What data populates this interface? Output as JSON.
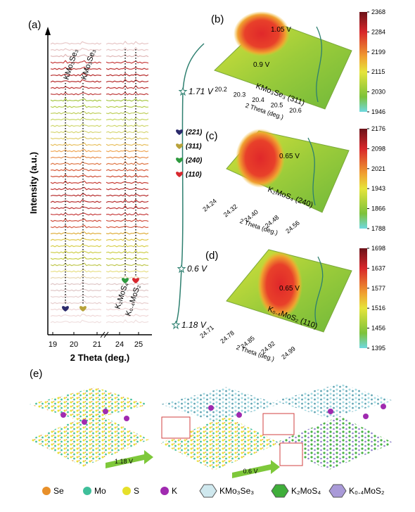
{
  "panel_a": {
    "label": "(a)",
    "y_label": "Intensity (a.u.)",
    "x_label": "2 Theta (deg.)",
    "x_ticks": [
      "19",
      "20",
      "21",
      "24",
      "25"
    ],
    "phases_left": [
      "KMo₃Se₃",
      "KMo₃Se₃"
    ],
    "phases_right": [
      "K₂MoS₄",
      "K₀.₄MoS₂"
    ],
    "legend": [
      {
        "label": "(221)",
        "color": "#2b2a6b"
      },
      {
        "label": "(311)",
        "color": "#b8a23a"
      },
      {
        "label": "(240)",
        "color": "#2e9a3e"
      },
      {
        "label": "(110)",
        "color": "#d8282e"
      }
    ],
    "voltages": [
      "1.71 V",
      "0.6 V",
      "1.18 V"
    ]
  },
  "panels_3d": [
    {
      "label": "(b)",
      "notes": [
        "1.05 V",
        "0.9 V"
      ],
      "phase": "KMo₃Se₃ (311)",
      "axis_label": "2 Theta (deg.)",
      "ticks": [
        "20.2",
        "20.3",
        "20.4",
        "20.5",
        "20.6"
      ],
      "colorbar": [
        "2368",
        "2284",
        "2199",
        "2115",
        "2030",
        "1946"
      ]
    },
    {
      "label": "(c)",
      "notes": [
        "0.65 V"
      ],
      "phase": "K₂MoS₄ (240)",
      "axis_label": "2 Theta (deg.)",
      "ticks": [
        "24.24",
        "24.32",
        "24.40",
        "24.48",
        "24.56"
      ],
      "colorbar": [
        "2176",
        "2098",
        "2021",
        "1943",
        "1866",
        "1788"
      ]
    },
    {
      "label": "(d)",
      "notes": [
        "0.65 V"
      ],
      "phase": "K₀.₄MoS₂ (110)",
      "axis_label": "2 Theta (deg.)",
      "ticks": [
        "24.71",
        "24.78",
        "24.85",
        "24.92",
        "24.99"
      ],
      "colorbar": [
        "1698",
        "1637",
        "1577",
        "1516",
        "1456",
        "1395"
      ]
    }
  ],
  "panel_e": {
    "label": "(e)",
    "arrows": [
      "1.18 V",
      "0.6 V"
    ],
    "legend": [
      {
        "label": "Se",
        "color": "#e8902a",
        "shape": "atom"
      },
      {
        "label": "Mo",
        "color": "#3fbf9a",
        "shape": "atom"
      },
      {
        "label": "S",
        "color": "#e6e02a",
        "shape": "atom"
      },
      {
        "label": "K",
        "color": "#a02ab0",
        "shape": "atom"
      },
      {
        "label": "KMo₃Se₃",
        "color": "#cfe8ee",
        "shape": "poly"
      },
      {
        "label": "K₂MoS₄",
        "color": "#3fae3a",
        "shape": "poly"
      },
      {
        "label": "K₀.₄MoS₂",
        "color": "#a99ad8",
        "shape": "poly"
      }
    ]
  }
}
